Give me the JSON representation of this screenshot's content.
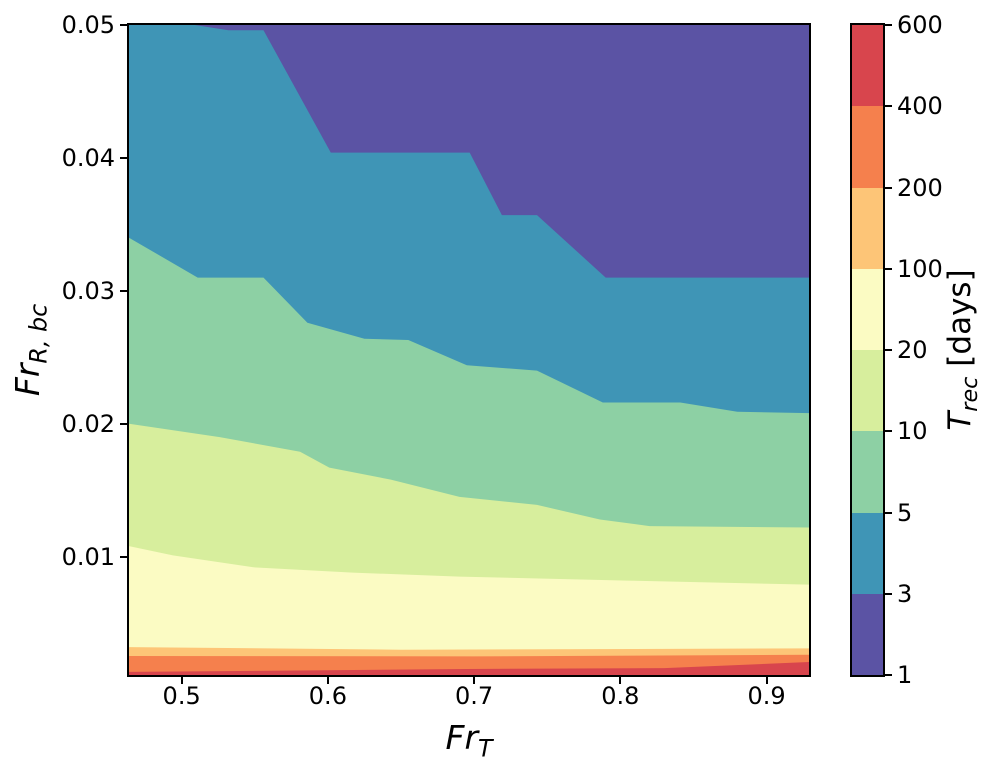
{
  "axes": {
    "xlabel": {
      "main": "Fr",
      "sub": "T"
    },
    "ylabel": {
      "main": "Fr",
      "sub": "R, bc"
    },
    "x_tick_labels": [
      "0.5",
      "0.6",
      "0.7",
      "0.8",
      "0.9"
    ],
    "y_tick_labels": [
      "0.05",
      "0.04",
      "0.03",
      "0.02",
      "0.01"
    ]
  },
  "colorbar": {
    "label": {
      "main": "T",
      "sub": "rec",
      "rest": " [days]"
    },
    "tick_labels": [
      "1",
      "3",
      "5",
      "10",
      "20",
      "100",
      "200",
      "400",
      "600"
    ]
  },
  "chart_data": {
    "type": "filled-contour",
    "title": "",
    "xlabel": "Fr_T",
    "ylabel": "Fr_R,bc",
    "colorbar_label": "T_rec [days]",
    "x_range": [
      0.464,
      0.929
    ],
    "y_range": [
      0.0011,
      0.05
    ],
    "x_ticks": [
      0.5,
      0.6,
      0.7,
      0.8,
      0.9
    ],
    "y_ticks": [
      0.05,
      0.04,
      0.03,
      0.02,
      0.01
    ],
    "grid": false,
    "levels": [
      1,
      3,
      5,
      10,
      20,
      100,
      200,
      400,
      600
    ],
    "interval_colors": [
      "#5b53a4",
      "#3f95b6",
      "#8dd0a4",
      "#d7ee9d",
      "#fbfbc3",
      "#fdc577",
      "#f5804d",
      "#d8454d"
    ],
    "boundaries": [
      {
        "level": 3,
        "points": [
          [
            0.509,
            0.05
          ],
          [
            0.532,
            0.0496
          ],
          [
            0.556,
            0.0496
          ],
          [
            0.602,
            0.0404
          ],
          [
            0.697,
            0.0404
          ],
          [
            0.719,
            0.0357
          ],
          [
            0.743,
            0.0357
          ],
          [
            0.79,
            0.031
          ],
          [
            0.929,
            0.031
          ]
        ]
      },
      {
        "level": 5,
        "points": [
          [
            0.464,
            0.034
          ],
          [
            0.511,
            0.031
          ],
          [
            0.556,
            0.031
          ],
          [
            0.586,
            0.0276
          ],
          [
            0.625,
            0.0264
          ],
          [
            0.655,
            0.0263
          ],
          [
            0.695,
            0.0244
          ],
          [
            0.743,
            0.024
          ],
          [
            0.788,
            0.0216
          ],
          [
            0.841,
            0.0216
          ],
          [
            0.88,
            0.0209
          ],
          [
            0.929,
            0.0208
          ]
        ]
      },
      {
        "level": 10,
        "points": [
          [
            0.464,
            0.02
          ],
          [
            0.526,
            0.019
          ],
          [
            0.581,
            0.0179
          ],
          [
            0.601,
            0.0167
          ],
          [
            0.643,
            0.0158
          ],
          [
            0.69,
            0.0145
          ],
          [
            0.743,
            0.0139
          ],
          [
            0.786,
            0.0128
          ],
          [
            0.82,
            0.0123
          ],
          [
            0.929,
            0.0122
          ]
        ]
      },
      {
        "level": 20,
        "points": [
          [
            0.464,
            0.0108
          ],
          [
            0.494,
            0.0101
          ],
          [
            0.549,
            0.0092
          ],
          [
            0.617,
            0.0088
          ],
          [
            0.69,
            0.0085
          ],
          [
            0.805,
            0.0082
          ],
          [
            0.929,
            0.0079
          ]
        ]
      },
      {
        "level": 100,
        "points": [
          [
            0.464,
            0.0032
          ],
          [
            0.65,
            0.003
          ],
          [
            0.929,
            0.0031
          ]
        ]
      },
      {
        "level": 200,
        "points": [
          [
            0.464,
            0.00253
          ],
          [
            0.7,
            0.0025
          ],
          [
            0.929,
            0.00262
          ]
        ]
      },
      {
        "level": 400,
        "points": [
          [
            0.464,
            0.00133
          ],
          [
            0.695,
            0.00155
          ],
          [
            0.83,
            0.00162
          ],
          [
            0.929,
            0.00208
          ]
        ]
      }
    ]
  }
}
